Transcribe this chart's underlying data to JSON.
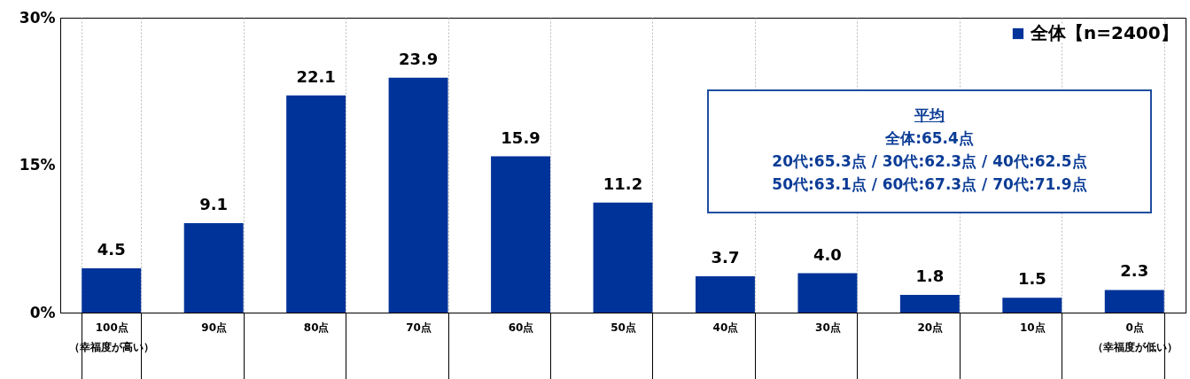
{
  "chart_data": {
    "type": "bar",
    "categories": [
      "100点（幸福度が高い）",
      "90点",
      "80点",
      "70点",
      "60点",
      "50点",
      "40点",
      "30点",
      "20点",
      "10点",
      "0点（幸福度が低い）"
    ],
    "series": [
      {
        "name": "全体【n=2400】",
        "color": "#003399",
        "values": [
          4.5,
          9.1,
          22.1,
          23.9,
          15.9,
          11.2,
          3.7,
          4.0,
          1.8,
          1.5,
          2.3
        ],
        "value_labels": [
          "4.5",
          "9.1",
          "22.1",
          "23.9",
          "15.9",
          "11.2",
          "3.7",
          "4.0",
          "1.8",
          "1.5",
          "2.3"
        ]
      }
    ],
    "ylim": [
      0,
      30
    ],
    "yticks": [
      {
        "value": 0,
        "label": "0%"
      },
      {
        "value": 15,
        "label": "15%"
      },
      {
        "value": 30,
        "label": "30%"
      }
    ],
    "grid": "x",
    "legend": "top right",
    "annotations": [
      "平均",
      "全体:65.4点",
      "20代:65.3点 / 30代:62.3点 / 40代:62.5点",
      "50代:63.1点 / 60代:67.3点 / 70代:71.9点"
    ]
  }
}
